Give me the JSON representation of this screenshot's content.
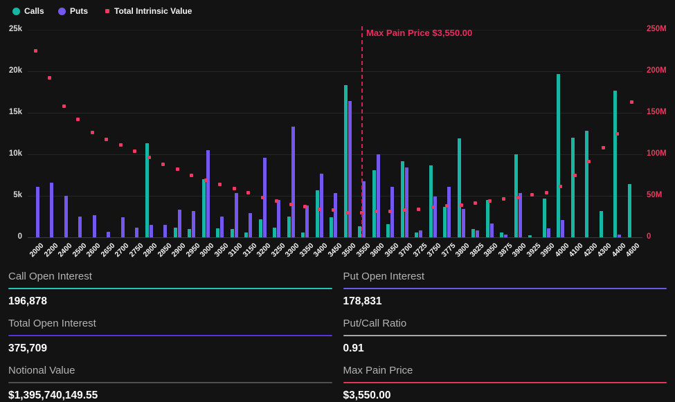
{
  "palette": {
    "background": "#131313",
    "calls": "#16b6a2",
    "puts": "#7458ee",
    "intrinsic": "#ee3a62",
    "max_pain": "#ee2b5c",
    "grid": "#262626",
    "axis_line": "#3c3c3c",
    "right_axis_text": "#e8395f"
  },
  "legend": {
    "calls_label": "Calls",
    "puts_label": "Puts",
    "tiv_label": "Total Intrinsic Value"
  },
  "chart_data": {
    "type": "bar",
    "title": "Options Open Interest by Strike",
    "categories": [
      "2000",
      "2200",
      "2400",
      "2500",
      "2600",
      "2650",
      "2700",
      "2750",
      "2800",
      "2850",
      "2900",
      "2950",
      "3000",
      "3050",
      "3100",
      "3150",
      "3200",
      "3250",
      "3300",
      "3350",
      "3400",
      "3450",
      "3500",
      "3550",
      "3600",
      "3650",
      "3700",
      "3725",
      "3750",
      "3775",
      "3800",
      "3825",
      "3850",
      "3875",
      "3900",
      "3925",
      "3950",
      "4000",
      "4100",
      "4200",
      "4300",
      "4400",
      "4600"
    ],
    "series": [
      {
        "name": "Calls",
        "type": "bar",
        "axis": "left",
        "values": [
          0,
          0,
          0,
          0,
          0,
          0,
          0,
          0,
          11300,
          0,
          1200,
          1000,
          7000,
          1100,
          1000,
          600,
          2200,
          1200,
          2500,
          600,
          5700,
          2400,
          18300,
          1300,
          8100,
          1600,
          9200,
          600,
          8700,
          3700,
          11900,
          1000,
          4500,
          600,
          10000,
          250,
          4650,
          19700,
          12000,
          12800,
          3200,
          17700,
          6400
        ]
      },
      {
        "name": "Puts",
        "type": "bar",
        "axis": "left",
        "values": [
          6100,
          6600,
          5000,
          2500,
          2700,
          700,
          2400,
          1200,
          1500,
          1500,
          3300,
          3200,
          10500,
          2500,
          5300,
          2900,
          9600,
          4500,
          13300,
          3800,
          7700,
          5300,
          16400,
          6750,
          10000,
          6100,
          8400,
          800,
          4900,
          6100,
          3400,
          800,
          1700,
          300,
          5300,
          0,
          1100,
          2100,
          0,
          0,
          0,
          350,
          0
        ]
      },
      {
        "name": "Total Intrinsic Value",
        "type": "scatter",
        "axis": "right",
        "unit": "M",
        "values_m": [
          225,
          192,
          158,
          142,
          126,
          118,
          111,
          104,
          96,
          88,
          82,
          75,
          69,
          64,
          59,
          54,
          48,
          44,
          40,
          37,
          34,
          33,
          30,
          30,
          31,
          31,
          33,
          34,
          36,
          38,
          39,
          41,
          44,
          46,
          48,
          51,
          54,
          61,
          75,
          91,
          108,
          125,
          163
        ]
      }
    ],
    "left_axis": {
      "ticks": [
        "25k",
        "20k",
        "15k",
        "10k",
        "5k",
        "0"
      ],
      "min": 0,
      "max": 25000
    },
    "right_axis": {
      "ticks": [
        "250M",
        "200M",
        "150M",
        "100M",
        "50M",
        "0"
      ],
      "min": 0,
      "max": 250
    },
    "annotation": {
      "label": "Max Pain Price $3,550.00",
      "x": "3550"
    },
    "legend_position": "top-left",
    "grid": true
  },
  "stats": [
    {
      "label": "Call Open Interest",
      "value": "196,878",
      "underline": "#1fc9ae"
    },
    {
      "label": "Put Open Interest",
      "value": "178,831",
      "underline": "#6b5ce8"
    },
    {
      "label": "Total Open Interest",
      "value": "375,709",
      "underline": "#5a31e0"
    },
    {
      "label": "Put/Call Ratio",
      "value": "0.91",
      "underline": "#a8a8a8"
    },
    {
      "label": "Notional Value",
      "value": "$1,395,740,149.55",
      "underline": "#4f4f4f"
    },
    {
      "label": "Max Pain Price",
      "value": "$3,550.00",
      "underline": "#e8345c"
    }
  ]
}
